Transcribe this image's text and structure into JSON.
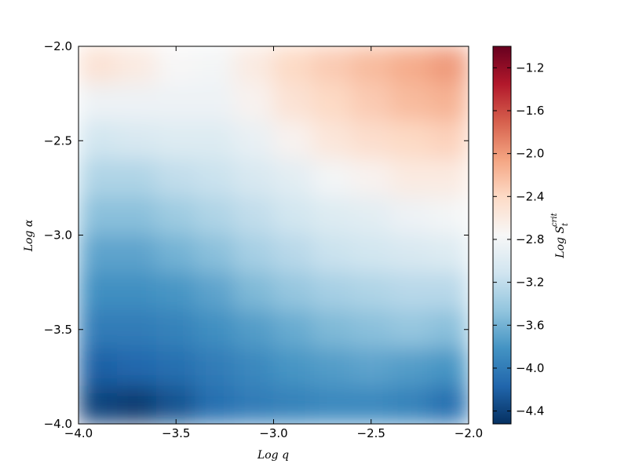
{
  "chart_data": {
    "type": "heatmap",
    "xlabel": "Log q",
    "ylabel": "Log α",
    "colorbar_label": {
      "text": "Log S",
      "sub": "t",
      "sup": "crit"
    },
    "x": [
      -3.9,
      -3.7,
      -3.5,
      -3.3,
      -3.1,
      -2.9,
      -2.7,
      -2.5,
      -2.3,
      -2.1
    ],
    "y": [
      -2.1,
      -2.3,
      -2.5,
      -2.7,
      -2.9,
      -3.1,
      -3.3,
      -3.5,
      -3.7,
      -3.9
    ],
    "values": [
      [
        -2.5,
        -2.6,
        -2.75,
        -2.8,
        -2.6,
        -2.4,
        -2.3,
        -2.2,
        -2.1,
        -2.0
      ],
      [
        -2.85,
        -2.85,
        -2.85,
        -2.85,
        -2.7,
        -2.5,
        -2.4,
        -2.3,
        -2.2,
        -2.15
      ],
      [
        -3.1,
        -3.05,
        -3.0,
        -3.0,
        -2.9,
        -2.7,
        -2.55,
        -2.45,
        -2.4,
        -2.35
      ],
      [
        -3.3,
        -3.3,
        -3.2,
        -3.15,
        -3.05,
        -2.95,
        -2.8,
        -2.7,
        -2.6,
        -2.6
      ],
      [
        -3.5,
        -3.5,
        -3.4,
        -3.3,
        -3.2,
        -3.1,
        -3.0,
        -2.95,
        -2.85,
        -2.8
      ],
      [
        -3.7,
        -3.7,
        -3.6,
        -3.5,
        -3.35,
        -3.25,
        -3.15,
        -3.1,
        -3.05,
        -3.0
      ],
      [
        -3.85,
        -3.85,
        -3.8,
        -3.7,
        -3.55,
        -3.45,
        -3.35,
        -3.3,
        -3.25,
        -3.25
      ],
      [
        -4.0,
        -4.0,
        -3.95,
        -3.85,
        -3.75,
        -3.65,
        -3.55,
        -3.5,
        -3.45,
        -3.5
      ],
      [
        -4.2,
        -4.15,
        -4.1,
        -4.0,
        -3.9,
        -3.8,
        -3.75,
        -3.7,
        -3.75,
        -3.8
      ],
      [
        -4.4,
        -4.45,
        -4.3,
        -4.1,
        -4.0,
        -3.95,
        -3.9,
        -3.9,
        -3.95,
        -4.1
      ]
    ],
    "xlim": [
      -4.0,
      -2.0
    ],
    "ylim": [
      -4.0,
      -2.0
    ],
    "xticks": [
      {
        "value": -4.0,
        "label": "−4.0"
      },
      {
        "value": -3.5,
        "label": "−3.5"
      },
      {
        "value": -3.0,
        "label": "−3.0"
      },
      {
        "value": -2.5,
        "label": "−2.5"
      },
      {
        "value": -2.0,
        "label": "−2.0"
      }
    ],
    "yticks": [
      {
        "value": -4.0,
        "label": "−4.0"
      },
      {
        "value": -3.5,
        "label": "−3.5"
      },
      {
        "value": -3.0,
        "label": "−3.0"
      },
      {
        "value": -2.5,
        "label": "−2.5"
      },
      {
        "value": -2.0,
        "label": "−2.0"
      }
    ],
    "clim": [
      -4.52,
      -1.0
    ],
    "cticks": [
      {
        "value": -4.4,
        "label": "−4.4"
      },
      {
        "value": -4.0,
        "label": "−4.0"
      },
      {
        "value": -3.6,
        "label": "−3.6"
      },
      {
        "value": -3.2,
        "label": "−3.2"
      },
      {
        "value": -2.8,
        "label": "−2.8"
      },
      {
        "value": -2.4,
        "label": "−2.4"
      },
      {
        "value": -2.0,
        "label": "−2.0"
      },
      {
        "value": -1.6,
        "label": "−1.6"
      },
      {
        "value": -1.2,
        "label": "−1.2"
      }
    ],
    "colormap": [
      "#053061",
      "#2166ac",
      "#4393c3",
      "#92c5de",
      "#d1e5f0",
      "#f7f7f7",
      "#fddbc7",
      "#f4a582",
      "#d6604d",
      "#b2182b",
      "#67001f"
    ]
  }
}
